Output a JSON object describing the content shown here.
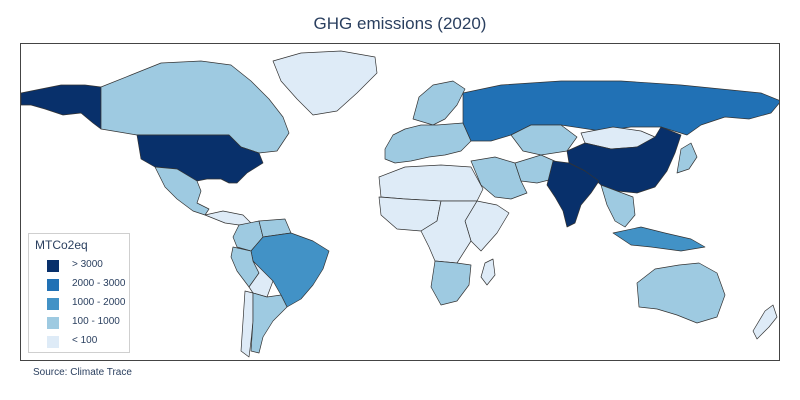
{
  "title": "GHG emissions (2020)",
  "source": "Source:  Climate Trace",
  "legend": {
    "title": "MTCo2eq",
    "items": [
      {
        "label": "> 3000",
        "color": "#08306b"
      },
      {
        "label": "2000 - 3000",
        "color": "#2171b5"
      },
      {
        "label": "1000 - 2000",
        "color": "#4292c6"
      },
      {
        "label": "100 - 1000",
        "color": "#9ecae1"
      },
      {
        "label": "< 100",
        "color": "#deebf7"
      }
    ]
  },
  "map": {
    "type": "choropleth",
    "projection": "equirectangular",
    "classes": {
      "c1": "#08306b",
      "c2": "#2171b5",
      "c3": "#4292c6",
      "c4": "#9ecae1",
      "c5": "#deebf7"
    },
    "regions": [
      {
        "name": "alaska",
        "class": "c1"
      },
      {
        "name": "canada",
        "class": "c4"
      },
      {
        "name": "greenland",
        "class": "c5"
      },
      {
        "name": "united-states",
        "class": "c1"
      },
      {
        "name": "mexico",
        "class": "c4"
      },
      {
        "name": "central-america",
        "class": "c5"
      },
      {
        "name": "colombia",
        "class": "c4"
      },
      {
        "name": "venezuela",
        "class": "c4"
      },
      {
        "name": "peru",
        "class": "c4"
      },
      {
        "name": "bolivia",
        "class": "c5"
      },
      {
        "name": "brazil",
        "class": "c3"
      },
      {
        "name": "argentina",
        "class": "c4"
      },
      {
        "name": "chile",
        "class": "c5"
      },
      {
        "name": "europe-west",
        "class": "c4"
      },
      {
        "name": "scandinavia",
        "class": "c4"
      },
      {
        "name": "russia",
        "class": "c2"
      },
      {
        "name": "kazakhstan",
        "class": "c4"
      },
      {
        "name": "mongolia",
        "class": "c5"
      },
      {
        "name": "china",
        "class": "c1"
      },
      {
        "name": "india",
        "class": "c1"
      },
      {
        "name": "middle-east",
        "class": "c4"
      },
      {
        "name": "iran",
        "class": "c4"
      },
      {
        "name": "north-africa",
        "class": "c5"
      },
      {
        "name": "west-africa",
        "class": "c5"
      },
      {
        "name": "central-africa",
        "class": "c5"
      },
      {
        "name": "east-africa",
        "class": "c5"
      },
      {
        "name": "southern-africa",
        "class": "c4"
      },
      {
        "name": "southeast-asia",
        "class": "c4"
      },
      {
        "name": "indonesia",
        "class": "c3"
      },
      {
        "name": "japan",
        "class": "c4"
      },
      {
        "name": "australia",
        "class": "c4"
      },
      {
        "name": "new-zealand",
        "class": "c5"
      },
      {
        "name": "madagascar",
        "class": "c5"
      }
    ]
  }
}
